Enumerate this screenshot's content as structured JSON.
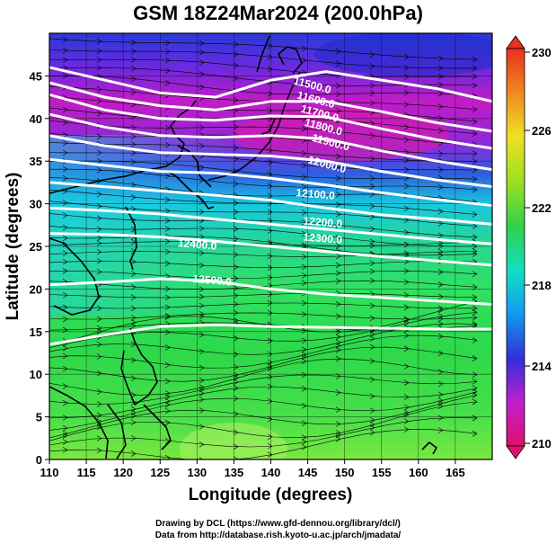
{
  "title": "GSM 18Z24Mar2024 (200.0hPa)",
  "credits": {
    "line1": "Drawing by DCL (https://www.gfd-dennou.org/library/dcl/)",
    "line2": "Data from http://database.rish.kyoto-u.ac.jp/arch/jmadata/"
  },
  "map": {
    "xlabel": "Longitude (degrees)",
    "ylabel": "Latitude  (degrees)",
    "lon_range": [
      110,
      170
    ],
    "lat_range": [
      0,
      50
    ],
    "lon_ticks": [
      "110",
      "115",
      "120",
      "125",
      "130",
      "135",
      "140",
      "145",
      "150",
      "155",
      "160",
      "165"
    ],
    "lat_ticks": [
      "0",
      "5",
      "10",
      "15",
      "20",
      "25",
      "30",
      "35",
      "40",
      "45"
    ],
    "contour_labels": [
      "11500.0",
      "11600.0",
      "11700.0",
      "11800.0",
      "11900.0",
      "12000.0",
      "12100.0",
      "12200.0",
      "12300.0",
      "12400.0",
      "12500.0"
    ],
    "colorbar": {
      "ticks": [
        "230",
        "226",
        "222",
        "218",
        "214",
        "210"
      ],
      "colors": [
        "#e0106a",
        "#c020d0",
        "#3030d8",
        "#10a0f0",
        "#10e0c0",
        "#30d050",
        "#a0e020",
        "#f0e020",
        "#f09020",
        "#e83020"
      ]
    }
  }
}
